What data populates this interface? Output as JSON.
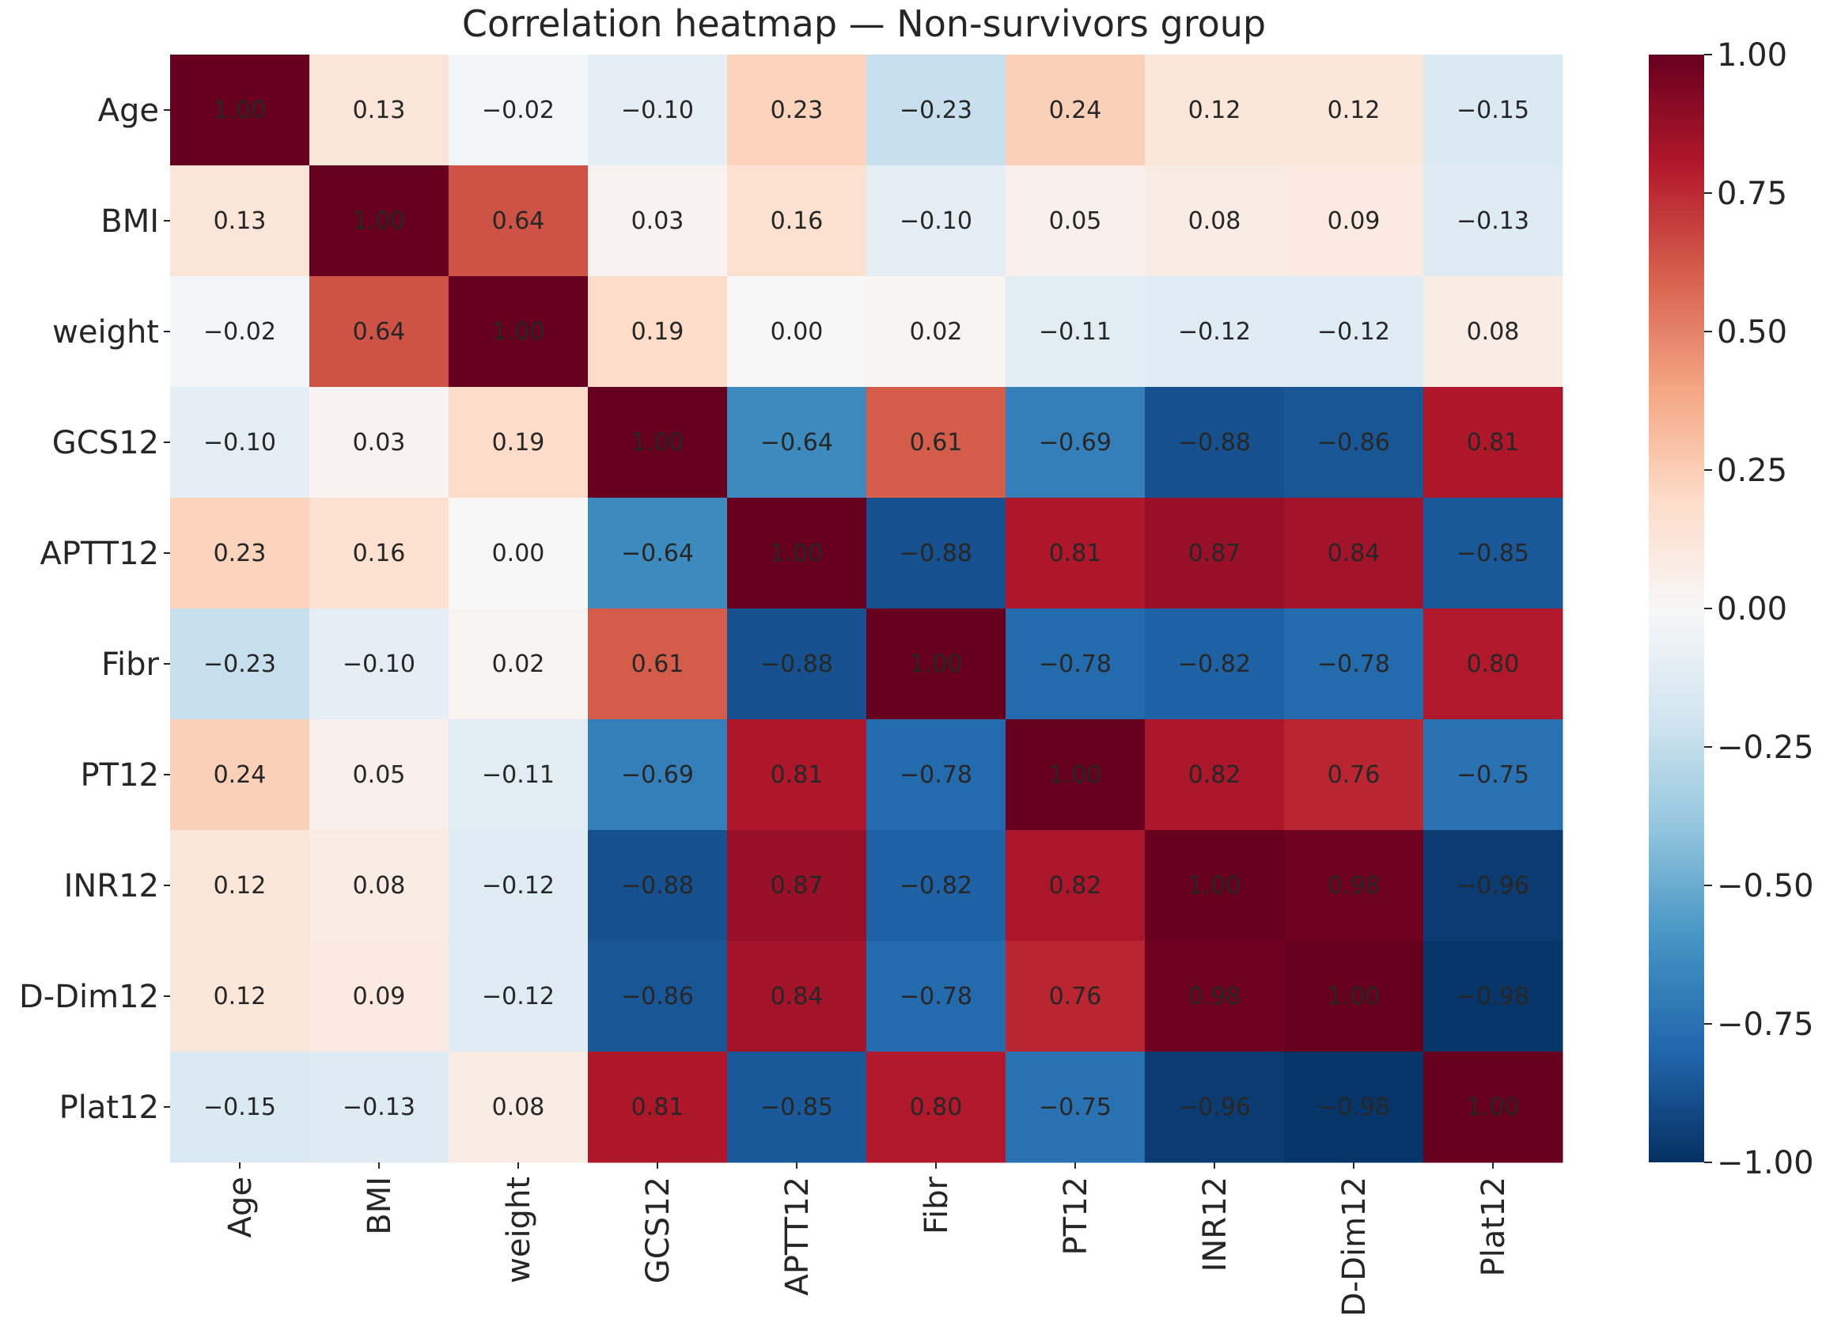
{
  "chart_data": {
    "type": "heatmap",
    "title": "Correlation heatmap — Non-survivors group",
    "xlabel": "",
    "ylabel": "",
    "rows": [
      "Age",
      "BMI",
      "weight",
      "GCS12",
      "APTT12",
      "Fibr",
      "PT12",
      "INR12",
      "D-Dim12",
      "Plat12"
    ],
    "columns": [
      "Age",
      "BMI",
      "weight",
      "GCS12",
      "APTT12",
      "Fibr",
      "PT12",
      "INR12",
      "D-Dim12",
      "Plat12"
    ],
    "values": [
      [
        1.0,
        0.13,
        -0.02,
        -0.1,
        0.23,
        -0.23,
        0.24,
        0.12,
        0.12,
        -0.15
      ],
      [
        0.13,
        1.0,
        0.64,
        0.03,
        0.16,
        -0.1,
        0.05,
        0.08,
        0.09,
        -0.13
      ],
      [
        -0.02,
        0.64,
        1.0,
        0.19,
        0.0,
        0.02,
        -0.11,
        -0.12,
        -0.12,
        0.08
      ],
      [
        -0.1,
        0.03,
        0.19,
        1.0,
        -0.64,
        0.61,
        -0.69,
        -0.88,
        -0.86,
        0.81
      ],
      [
        0.23,
        0.16,
        0.0,
        -0.64,
        1.0,
        -0.88,
        0.81,
        0.87,
        0.84,
        -0.85
      ],
      [
        -0.23,
        -0.1,
        0.02,
        0.61,
        -0.88,
        1.0,
        -0.78,
        -0.82,
        -0.78,
        0.8
      ],
      [
        0.24,
        0.05,
        -0.11,
        -0.69,
        0.81,
        -0.78,
        1.0,
        0.82,
        0.76,
        -0.75
      ],
      [
        0.12,
        0.08,
        -0.12,
        -0.88,
        0.87,
        -0.82,
        0.82,
        1.0,
        0.98,
        -0.96
      ],
      [
        0.12,
        0.09,
        -0.12,
        -0.86,
        0.84,
        -0.78,
        0.76,
        0.98,
        1.0,
        -0.98
      ],
      [
        -0.15,
        -0.13,
        0.08,
        0.81,
        -0.85,
        0.8,
        -0.75,
        -0.96,
        -0.98,
        1.0
      ]
    ],
    "value_format": "2 decimals",
    "colormap": "RdBu_r",
    "vmin": -1.0,
    "vmax": 1.0,
    "colorbar": {
      "ticks": [
        1.0,
        0.75,
        0.5,
        0.25,
        0.0,
        -0.25,
        -0.5,
        -0.75,
        -1.0
      ],
      "tick_labels": [
        "1.00",
        "0.75",
        "0.50",
        "0.25",
        "0.00",
        "−0.25",
        "−0.50",
        "−0.75",
        "−1.00"
      ]
    },
    "colorscale": [
      "#053061",
      "#2166ac",
      "#4393c3",
      "#92c5de",
      "#d1e5f0",
      "#f7f7f7",
      "#fddbc7",
      "#f4a582",
      "#d6604d",
      "#b2182b",
      "#67001f"
    ]
  }
}
